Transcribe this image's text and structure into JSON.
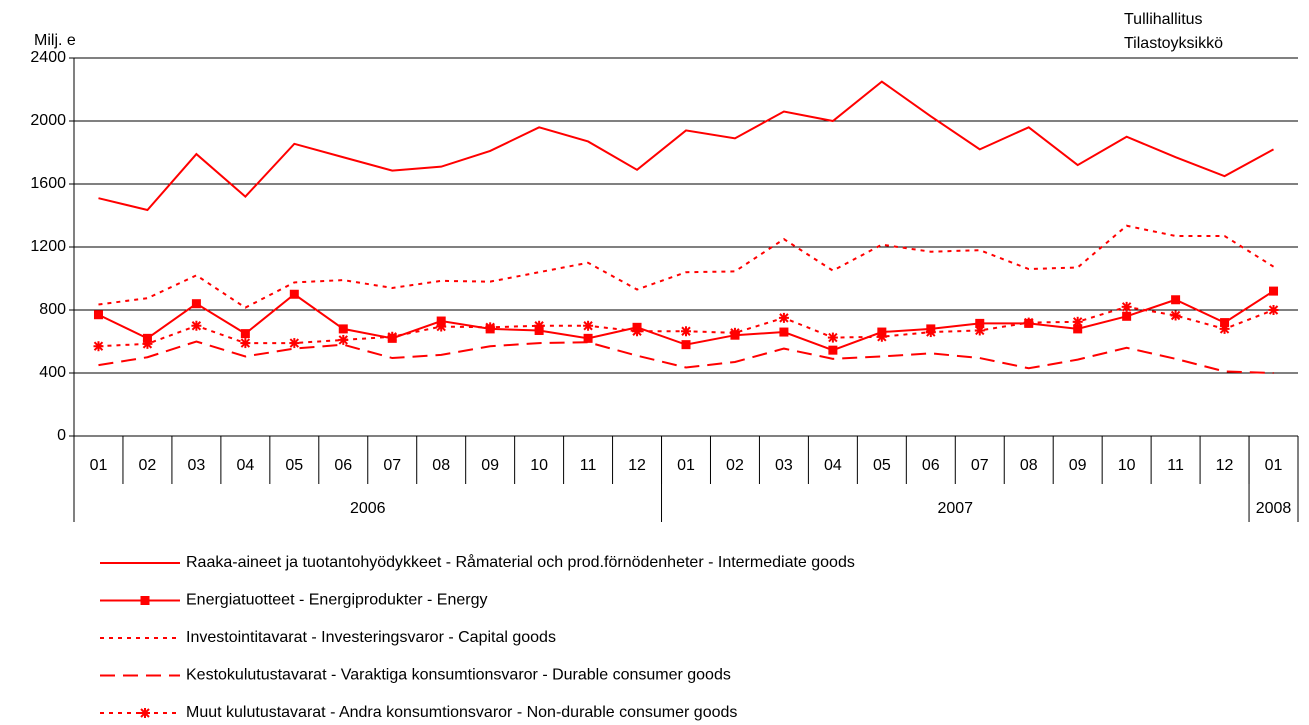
{
  "chart_data": {
    "type": "line",
    "y_label": "Milj. e",
    "annotations": [
      "Tullihallitus",
      "Tilastoyksikkö"
    ],
    "categories": [
      "01",
      "02",
      "03",
      "04",
      "05",
      "06",
      "07",
      "08",
      "09",
      "10",
      "11",
      "12",
      "01",
      "02",
      "03",
      "04",
      "05",
      "06",
      "07",
      "08",
      "09",
      "10",
      "11",
      "12",
      "01"
    ],
    "groups": [
      {
        "label": "2006",
        "span": 12
      },
      {
        "label": "2007",
        "span": 12
      },
      {
        "label": "2008",
        "span": 1
      }
    ],
    "ylim": [
      0,
      2400
    ],
    "yticks": [
      0,
      400,
      800,
      1200,
      1600,
      2000,
      2400
    ],
    "grid": true,
    "series": [
      {
        "name": "Raaka-aineet ja tuotantohyödykkeet - Råmaterial och prod.förnödenheter - Intermediate goods",
        "color": "#ff0000",
        "dash": "solid",
        "values": [
          1510,
          1435,
          1790,
          1520,
          1855,
          1770,
          1685,
          1710,
          1810,
          1960,
          1870,
          1690,
          1940,
          1890,
          2060,
          2000,
          2250,
          2030,
          1820,
          1960,
          1720,
          1900,
          1770,
          1650,
          1820
        ]
      },
      {
        "name": "Energiatuotteet - Energiprodukter - Energy",
        "color": "#ff0000",
        "dash": "solid",
        "marker": "square",
        "values": [
          770,
          620,
          840,
          650,
          900,
          680,
          620,
          730,
          680,
          670,
          620,
          690,
          580,
          640,
          660,
          545,
          660,
          680,
          715,
          715,
          680,
          760,
          865,
          720,
          920
        ]
      },
      {
        "name": "Investointitavarat - Investeringsvaror - Capital goods",
        "color": "#ff0000",
        "dash": "dotted",
        "values": [
          835,
          875,
          1020,
          815,
          975,
          990,
          940,
          985,
          980,
          1040,
          1100,
          930,
          1040,
          1045,
          1250,
          1050,
          1215,
          1170,
          1180,
          1060,
          1070,
          1335,
          1270,
          1270,
          1075
        ]
      },
      {
        "name": "Kestokulutustavarat - Varaktiga konsumtionsvaror - Durable consumer goods",
        "color": "#ff0000",
        "dash": "dashed",
        "values": [
          450,
          500,
          600,
          505,
          555,
          580,
          495,
          515,
          570,
          590,
          595,
          510,
          435,
          470,
          555,
          490,
          505,
          525,
          495,
          430,
          485,
          560,
          490,
          410,
          400
        ]
      },
      {
        "name": "Muut kulutustavarat - Andra konsumtionsvaror - Non-durable consumer goods",
        "color": "#ff0000",
        "dash": "dotted",
        "marker": "asterisk",
        "values": [
          570,
          585,
          700,
          590,
          590,
          610,
          630,
          695,
          690,
          700,
          700,
          665,
          665,
          655,
          750,
          625,
          630,
          660,
          670,
          720,
          725,
          820,
          765,
          680,
          800
        ]
      }
    ]
  }
}
